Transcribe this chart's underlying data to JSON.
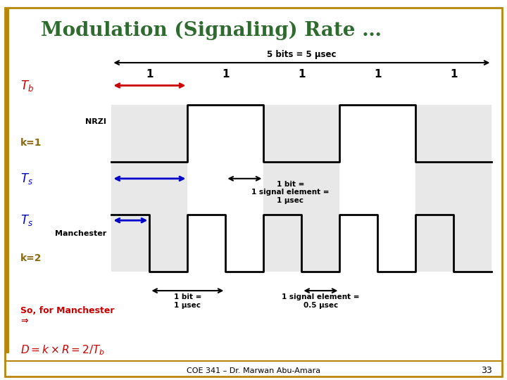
{
  "title": "Modulation (Signaling) Rate …",
  "title_color": "#2E6B2E",
  "background_color": "#FFFFFF",
  "slide_border_color": "#B8860B",
  "footer_text": "COE 341 – Dr. Marwan Abu-Amara",
  "footer_number": "33",
  "top_arrow_label": "5 bits = 5 μsec",
  "Tb_color": "#CC0000",
  "Ts_color": "#0000CC",
  "k1_color": "#8B6914",
  "k2_color": "#8B6914",
  "so_for_manchester_color": "#CC0000",
  "D_eq_color": "#CC0000",
  "nrzi_label": "NRZI",
  "manchester_label": "Manchester",
  "k1_label": "k=1",
  "k2_label": "k=2",
  "so_text": "So, for Manchester\n⇒",
  "annotation_1bit_nrzi": "1 bit =\n1 signal element =\n1 μsec",
  "annotation_1bit_man1": "1 bit =\n1 μsec",
  "annotation_1bit_man2": "1 signal element =\n0.5 μsec",
  "bit_labels": [
    "1",
    "1",
    "1",
    "1",
    "1"
  ],
  "waveform_bg": "#E8E8E8",
  "nrzi_signal_x": [
    0,
    1,
    1,
    2,
    2,
    3,
    3,
    4,
    4,
    5
  ],
  "nrzi_signal_y": [
    0,
    0,
    1,
    1,
    0,
    0,
    1,
    1,
    0,
    0
  ],
  "manchester_signal_x": [
    0,
    0.5,
    0.5,
    1,
    1,
    1.5,
    1.5,
    2,
    2,
    2.5,
    2.5,
    3,
    3,
    3.5,
    3.5,
    4,
    4,
    4.5,
    4.5,
    5
  ],
  "manchester_signal_y": [
    1,
    1,
    0,
    0,
    1,
    1,
    0,
    0,
    1,
    1,
    0,
    0,
    1,
    1,
    0,
    0,
    1,
    1,
    0,
    0
  ]
}
